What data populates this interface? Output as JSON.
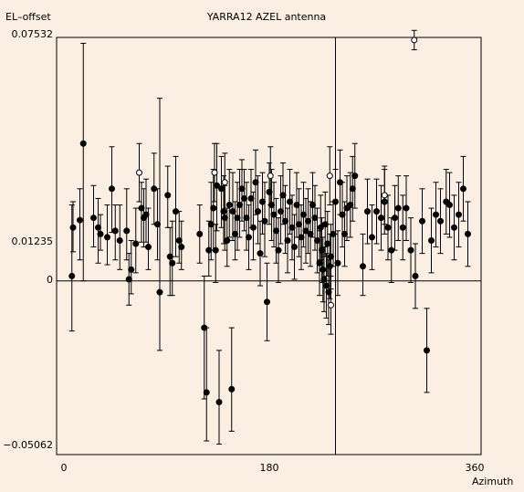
{
  "chart_data": {
    "type": "scatter",
    "title": "YARRA12 AZEL antenna",
    "ylabel": "EL–offset",
    "xlabel": "Azimuth",
    "xlim": [
      0,
      360
    ],
    "ylim": [
      -0.05062,
      0.07532
    ],
    "x_ticks": [
      0,
      180,
      360
    ],
    "x_tick_labels": [
      "0",
      "180",
      "360"
    ],
    "y_ticks": [
      0.07532,
      0.01235,
      0,
      -0.05062
    ],
    "y_tick_labels": [
      "0.07532",
      "0.01235",
      "0",
      "−0.05062"
    ],
    "grid": false,
    "reference_lines": {
      "y": 0,
      "x": 238
    },
    "series": [
      {
        "marker": "filled-circle",
        "points": [
          {
            "x": 7,
            "y": 0.0015,
            "lo": -0.0155,
            "hi": 0.0235
          },
          {
            "x": 8,
            "y": 0.0165,
            "lo": 0.009,
            "hi": 0.0245
          },
          {
            "x": 14,
            "y": 0.0188,
            "lo": 0.0065,
            "hi": 0.0285
          },
          {
            "x": 17,
            "y": 0.0425,
            "lo": 0.0,
            "hi": 0.0735
          },
          {
            "x": 26,
            "y": 0.0195,
            "lo": 0.0105,
            "hi": 0.0295
          },
          {
            "x": 30,
            "y": 0.0165,
            "lo": 0.0055,
            "hi": 0.0255
          },
          {
            "x": 32,
            "y": 0.0145,
            "lo": 0.0095,
            "hi": 0.0205
          },
          {
            "x": 38,
            "y": 0.0135,
            "lo": 0.005,
            "hi": 0.0235
          },
          {
            "x": 42,
            "y": 0.0285,
            "lo": 0.015,
            "hi": 0.0415
          },
          {
            "x": 45,
            "y": 0.0155,
            "lo": 0.0065,
            "hi": 0.0235
          },
          {
            "x": 49,
            "y": 0.0125,
            "lo": 0.0035,
            "hi": 0.0235
          },
          {
            "x": 55,
            "y": 0.0155,
            "lo": 0.0065,
            "hi": 0.0285
          },
          {
            "x": 57,
            "y": 0.0005,
            "lo": -0.0075,
            "hi": 0.0085
          },
          {
            "x": 59,
            "y": 0.0035,
            "lo": -0.004,
            "hi": 0.0125
          },
          {
            "x": 63,
            "y": 0.0115,
            "lo": 0.0025,
            "hi": 0.0225
          },
          {
            "x": 68,
            "y": 0.0225,
            "lo": 0.012,
            "hi": 0.0305
          },
          {
            "x": 70,
            "y": 0.0195,
            "lo": 0.0105,
            "hi": 0.0285
          },
          {
            "x": 72,
            "y": 0.0205,
            "lo": 0.012,
            "hi": 0.0315
          },
          {
            "x": 74,
            "y": 0.0105,
            "lo": 0.0035,
            "hi": 0.0225
          },
          {
            "x": 79,
            "y": 0.0285,
            "lo": 0.0175,
            "hi": 0.0395
          },
          {
            "x": 82,
            "y": 0.0175,
            "lo": 0.0065,
            "hi": 0.0285
          },
          {
            "x": 84,
            "y": -0.0035,
            "lo": -0.0215,
            "hi": 0.0565
          },
          {
            "x": 91,
            "y": 0.0265,
            "lo": 0.0165,
            "hi": 0.0355
          },
          {
            "x": 93,
            "y": 0.0075,
            "lo": -0.0045,
            "hi": 0.0165
          },
          {
            "x": 95,
            "y": 0.0055,
            "lo": -0.0045,
            "hi": 0.0185
          },
          {
            "x": 98,
            "y": 0.0215,
            "lo": 0.0075,
            "hi": 0.0385
          },
          {
            "x": 101,
            "y": 0.0125,
            "lo": 0.0055,
            "hi": 0.0215
          },
          {
            "x": 103,
            "y": 0.0105,
            "lo": 0.0035,
            "hi": 0.0185
          },
          {
            "x": 119,
            "y": 0.0145,
            "lo": 0.0055,
            "hi": 0.0235
          },
          {
            "x": 123,
            "y": -0.0145,
            "lo": -0.0365,
            "hi": 0.0015
          },
          {
            "x": 125,
            "y": -0.0345,
            "lo": -0.0495,
            "hi": -0.0145
          },
          {
            "x": 127,
            "y": 0.0095,
            "lo": 0.0015,
            "hi": 0.0185
          },
          {
            "x": 129,
            "y": 0.0175,
            "lo": 0.0065,
            "hi": 0.0305
          },
          {
            "x": 131,
            "y": 0.0225,
            "lo": 0.0095,
            "hi": 0.0345
          },
          {
            "x": 133,
            "y": 0.0095,
            "lo": -0.0005,
            "hi": 0.0175
          },
          {
            "x": 134,
            "y": 0.0295,
            "lo": 0.0155,
            "hi": 0.0425
          },
          {
            "x": 136,
            "y": -0.0375,
            "lo": -0.0505,
            "hi": -0.0215
          },
          {
            "x": 138,
            "y": 0.0285,
            "lo": 0.0165,
            "hi": 0.0385
          },
          {
            "x": 140,
            "y": 0.0215,
            "lo": 0.0115,
            "hi": 0.0325
          },
          {
            "x": 141,
            "y": 0.0195,
            "lo": 0.0095,
            "hi": 0.0295
          },
          {
            "x": 143,
            "y": 0.0125,
            "lo": 0.0045,
            "hi": 0.0225
          },
          {
            "x": 145,
            "y": 0.0235,
            "lo": 0.0135,
            "hi": 0.0345
          },
          {
            "x": 147,
            "y": -0.0335,
            "lo": -0.0465,
            "hi": -0.0145
          },
          {
            "x": 148,
            "y": 0.0215,
            "lo": 0.0125,
            "hi": 0.0335
          },
          {
            "x": 150,
            "y": 0.0145,
            "lo": 0.0065,
            "hi": 0.0245
          },
          {
            "x": 152,
            "y": 0.0195,
            "lo": 0.0095,
            "hi": 0.0305
          },
          {
            "x": 154,
            "y": 0.0235,
            "lo": 0.0135,
            "hi": 0.0345
          },
          {
            "x": 156,
            "y": 0.0285,
            "lo": 0.0185,
            "hi": 0.0375
          },
          {
            "x": 158,
            "y": 0.0255,
            "lo": 0.0155,
            "hi": 0.0345
          },
          {
            "x": 160,
            "y": 0.0195,
            "lo": 0.0095,
            "hi": 0.0305
          },
          {
            "x": 162,
            "y": 0.0135,
            "lo": 0.0035,
            "hi": 0.0235
          },
          {
            "x": 164,
            "y": 0.0255,
            "lo": 0.0165,
            "hi": 0.0345
          },
          {
            "x": 166,
            "y": 0.0165,
            "lo": 0.0065,
            "hi": 0.0275
          },
          {
            "x": 168,
            "y": 0.0305,
            "lo": 0.0205,
            "hi": 0.0405
          },
          {
            "x": 170,
            "y": 0.0215,
            "lo": 0.0115,
            "hi": 0.0325
          },
          {
            "x": 172,
            "y": 0.0085,
            "lo": -0.0015,
            "hi": 0.0185
          },
          {
            "x": 174,
            "y": 0.0245,
            "lo": 0.0145,
            "hi": 0.0335
          },
          {
            "x": 176,
            "y": 0.0185,
            "lo": 0.0075,
            "hi": 0.0305
          },
          {
            "x": 178,
            "y": -0.0065,
            "lo": -0.0185,
            "hi": 0.0055
          },
          {
            "x": 180,
            "y": 0.0275,
            "lo": 0.0175,
            "hi": 0.0365
          },
          {
            "x": 182,
            "y": 0.0235,
            "lo": 0.0125,
            "hi": 0.0345
          },
          {
            "x": 184,
            "y": 0.0205,
            "lo": 0.0105,
            "hi": 0.0305
          },
          {
            "x": 186,
            "y": 0.0155,
            "lo": 0.0055,
            "hi": 0.0255
          },
          {
            "x": 188,
            "y": 0.0095,
            "lo": -0.0005,
            "hi": 0.0195
          },
          {
            "x": 190,
            "y": 0.0215,
            "lo": 0.0115,
            "hi": 0.0325
          },
          {
            "x": 192,
            "y": 0.0265,
            "lo": 0.0175,
            "hi": 0.0365
          },
          {
            "x": 194,
            "y": 0.0185,
            "lo": 0.0085,
            "hi": 0.0295
          },
          {
            "x": 196,
            "y": 0.0125,
            "lo": 0.0025,
            "hi": 0.0225
          },
          {
            "x": 198,
            "y": 0.0245,
            "lo": 0.0145,
            "hi": 0.0345
          },
          {
            "x": 200,
            "y": 0.0165,
            "lo": 0.0065,
            "hi": 0.0265
          },
          {
            "x": 202,
            "y": 0.0105,
            "lo": 0.0005,
            "hi": 0.0205
          },
          {
            "x": 204,
            "y": 0.0235,
            "lo": 0.0135,
            "hi": 0.0335
          },
          {
            "x": 206,
            "y": 0.0175,
            "lo": 0.0075,
            "hi": 0.0285
          },
          {
            "x": 208,
            "y": 0.0135,
            "lo": 0.0035,
            "hi": 0.0235
          },
          {
            "x": 210,
            "y": 0.0205,
            "lo": 0.0105,
            "hi": 0.0305
          },
          {
            "x": 212,
            "y": 0.0155,
            "lo": 0.0055,
            "hi": 0.0255
          },
          {
            "x": 214,
            "y": 0.0185,
            "lo": 0.0085,
            "hi": 0.0285
          },
          {
            "x": 216,
            "y": 0.0145,
            "lo": 0.0045,
            "hi": 0.0245
          },
          {
            "x": 218,
            "y": 0.0235,
            "lo": 0.0135,
            "hi": 0.0335
          },
          {
            "x": 220,
            "y": 0.0195,
            "lo": 0.0095,
            "hi": 0.0295
          },
          {
            "x": 222,
            "y": 0.0125,
            "lo": 0.0025,
            "hi": 0.0225
          },
          {
            "x": 224,
            "y": 0.0055,
            "lo": -0.0045,
            "hi": 0.0155
          },
          {
            "x": 225,
            "y": 0.0165,
            "lo": 0.0065,
            "hi": 0.0265
          },
          {
            "x": 226,
            "y": 0.0095,
            "lo": -0.0005,
            "hi": 0.0195
          },
          {
            "x": 227,
            "y": 0.0035,
            "lo": -0.0065,
            "hi": 0.0135
          },
          {
            "x": 228,
            "y": 0.0005,
            "lo": -0.0095,
            "hi": 0.0105
          },
          {
            "x": 229,
            "y": 0.0175,
            "lo": 0.0075,
            "hi": 0.0275
          },
          {
            "x": 230,
            "y": -0.0015,
            "lo": -0.0115,
            "hi": 0.0085
          },
          {
            "x": 231,
            "y": 0.0115,
            "lo": 0.0015,
            "hi": 0.0215
          },
          {
            "x": 232,
            "y": -0.0035,
            "lo": -0.0135,
            "hi": 0.0065
          },
          {
            "x": 233,
            "y": 0.0045,
            "lo": -0.0055,
            "hi": 0.0145
          },
          {
            "x": 234,
            "y": 0.0075,
            "lo": -0.0025,
            "hi": 0.0175
          },
          {
            "x": 236,
            "y": 0.0145,
            "lo": 0.0045,
            "hi": 0.0245
          },
          {
            "x": 238,
            "y": 0.0245,
            "lo": 0.0145,
            "hi": 0.0345
          },
          {
            "x": 240,
            "y": 0.0055,
            "lo": -0.0045,
            "hi": 0.0155
          },
          {
            "x": 242,
            "y": 0.0305,
            "lo": 0.0205,
            "hi": 0.0405
          },
          {
            "x": 244,
            "y": 0.0205,
            "lo": 0.0105,
            "hi": 0.0305
          },
          {
            "x": 246,
            "y": 0.0145,
            "lo": 0.0045,
            "hi": 0.0245
          },
          {
            "x": 248,
            "y": 0.0225,
            "lo": 0.0125,
            "hi": 0.0325
          },
          {
            "x": 251,
            "y": 0.0235,
            "lo": 0.0135,
            "hi": 0.0335
          },
          {
            "x": 253,
            "y": 0.0285,
            "lo": 0.0185,
            "hi": 0.0385
          },
          {
            "x": 255,
            "y": 0.0325,
            "lo": 0.0225,
            "hi": 0.0425
          },
          {
            "x": 262,
            "y": 0.0045,
            "lo": -0.0045,
            "hi": 0.0145
          },
          {
            "x": 266,
            "y": 0.0215,
            "lo": 0.0115,
            "hi": 0.0315
          },
          {
            "x": 270,
            "y": 0.0135,
            "lo": 0.0035,
            "hi": 0.0235
          },
          {
            "x": 274,
            "y": 0.0215,
            "lo": 0.0115,
            "hi": 0.0315
          },
          {
            "x": 278,
            "y": 0.0195,
            "lo": 0.0095,
            "hi": 0.0295
          },
          {
            "x": 281,
            "y": 0.0245,
            "lo": 0.0145,
            "hi": 0.0345
          },
          {
            "x": 284,
            "y": 0.0165,
            "lo": 0.0065,
            "hi": 0.0265
          },
          {
            "x": 287,
            "y": 0.0095,
            "lo": -0.0005,
            "hi": 0.0195
          },
          {
            "x": 290,
            "y": 0.0195,
            "lo": 0.0095,
            "hi": 0.0295
          },
          {
            "x": 293,
            "y": 0.0225,
            "lo": 0.0125,
            "hi": 0.0325
          },
          {
            "x": 297,
            "y": 0.0165,
            "lo": 0.0065,
            "hi": 0.0265
          },
          {
            "x": 300,
            "y": 0.0225,
            "lo": 0.0125,
            "hi": 0.0325
          },
          {
            "x": 304,
            "y": 0.0095,
            "lo": -0.0005,
            "hi": 0.0195
          },
          {
            "x": 308,
            "y": 0.0015,
            "lo": -0.0085,
            "hi": 0.0115
          },
          {
            "x": 314,
            "y": 0.0185,
            "lo": 0.0085,
            "hi": 0.0285
          },
          {
            "x": 318,
            "y": -0.0215,
            "lo": -0.0345,
            "hi": -0.0085
          },
          {
            "x": 322,
            "y": 0.0125,
            "lo": 0.0025,
            "hi": 0.0225
          },
          {
            "x": 326,
            "y": 0.0205,
            "lo": 0.0105,
            "hi": 0.0305
          },
          {
            "x": 330,
            "y": 0.0185,
            "lo": 0.0085,
            "hi": 0.0285
          },
          {
            "x": 335,
            "y": 0.0245,
            "lo": 0.0145,
            "hi": 0.0345
          },
          {
            "x": 338,
            "y": 0.0235,
            "lo": 0.0135,
            "hi": 0.0335
          },
          {
            "x": 342,
            "y": 0.0165,
            "lo": 0.0065,
            "hi": 0.0265
          },
          {
            "x": 346,
            "y": 0.0205,
            "lo": 0.0105,
            "hi": 0.0305
          },
          {
            "x": 350,
            "y": 0.0285,
            "lo": 0.0185,
            "hi": 0.0385
          },
          {
            "x": 354,
            "y": 0.0145,
            "lo": 0.0045,
            "hi": 0.0245
          }
        ]
      },
      {
        "marker": "open-circle",
        "points": [
          {
            "x": 66,
            "y": 0.0335,
            "lo": 0.0245,
            "hi": 0.0425
          },
          {
            "x": 132,
            "y": 0.0335,
            "lo": 0.0245,
            "hi": 0.0425
          },
          {
            "x": 141,
            "y": 0.0305,
            "lo": 0.0215,
            "hi": 0.0395
          },
          {
            "x": 181,
            "y": 0.0325,
            "lo": 0.0235,
            "hi": 0.0415
          },
          {
            "x": 233,
            "y": 0.0325,
            "lo": 0.0235,
            "hi": 0.0415
          },
          {
            "x": 234,
            "y": -0.0075,
            "lo": -0.0165,
            "hi": 0.0015
          },
          {
            "x": 281,
            "y": 0.0265,
            "lo": 0.0175,
            "hi": 0.0355
          },
          {
            "x": 307,
            "y": 0.0745,
            "lo": 0.0715,
            "hi": 0.0775
          }
        ]
      }
    ]
  }
}
